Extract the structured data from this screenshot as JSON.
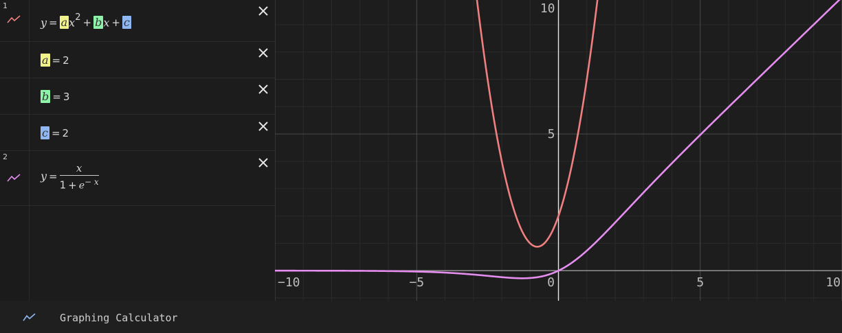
{
  "expressions": [
    {
      "index": "1",
      "lhs": "y",
      "eq": "=",
      "a": "a",
      "x1": "x",
      "pow": "2",
      "plus1": "+",
      "b": "b",
      "x2": "x",
      "plus2": "+",
      "c": "c",
      "color": "#f08080"
    },
    {
      "name": "a",
      "eq": "=",
      "value": "2",
      "color": "#f2f28a"
    },
    {
      "name": "b",
      "eq": "=",
      "value": "3",
      "color": "#8ef2a8"
    },
    {
      "name": "c",
      "eq": "=",
      "value": "2",
      "color": "#8fb8f2"
    },
    {
      "index": "2",
      "lhs": "y",
      "eq": "=",
      "numer": "x",
      "denom_one": "1",
      "denom_plus": "+",
      "denom_e": "e",
      "denom_exp": "− x",
      "color": "#e58ef0"
    }
  ],
  "graph": {
    "x_ticks": [
      "−10",
      "−5",
      "0",
      "5",
      "10"
    ],
    "y_ticks": [
      "5",
      "10"
    ],
    "xlim": [
      -10,
      10
    ],
    "ylim": [
      -1.1,
      9.9
    ]
  },
  "footer": {
    "title": "Graphing Calculator",
    "icon_color": "#8fb8f2"
  },
  "icons": {
    "close": "close-icon",
    "graph": "graph-line-icon"
  }
}
